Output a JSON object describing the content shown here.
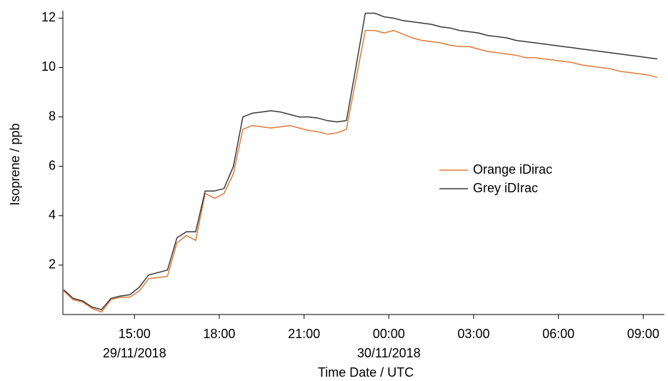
{
  "chart_data": {
    "type": "line",
    "xlabel": "Time Date / UTC",
    "ylabel": "Isoprene / ppb",
    "x": [
      "2018-11-29 12:30",
      "2018-11-29 12:50",
      "2018-11-29 13:10",
      "2018-11-29 13:30",
      "2018-11-29 13:50",
      "2018-11-29 14:10",
      "2018-11-29 14:30",
      "2018-11-29 14:50",
      "2018-11-29 15:10",
      "2018-11-29 15:30",
      "2018-11-29 15:50",
      "2018-11-29 16:10",
      "2018-11-29 16:30",
      "2018-11-29 16:50",
      "2018-11-29 17:10",
      "2018-11-29 17:30",
      "2018-11-29 17:50",
      "2018-11-29 18:10",
      "2018-11-29 18:30",
      "2018-11-29 18:50",
      "2018-11-29 19:10",
      "2018-11-29 19:30",
      "2018-11-29 19:50",
      "2018-11-29 20:10",
      "2018-11-29 20:30",
      "2018-11-29 20:50",
      "2018-11-29 21:10",
      "2018-11-29 21:30",
      "2018-11-29 21:50",
      "2018-11-29 22:10",
      "2018-11-29 22:30",
      "2018-11-29 22:50",
      "2018-11-29 23:10",
      "2018-11-29 23:30",
      "2018-11-29 23:50",
      "2018-11-30 00:10",
      "2018-11-30 00:30",
      "2018-11-30 00:50",
      "2018-11-30 01:10",
      "2018-11-30 01:30",
      "2018-11-30 01:50",
      "2018-11-30 02:10",
      "2018-11-30 02:30",
      "2018-11-30 02:50",
      "2018-11-30 03:10",
      "2018-11-30 03:30",
      "2018-11-30 03:50",
      "2018-11-30 04:10",
      "2018-11-30 04:30",
      "2018-11-30 04:50",
      "2018-11-30 05:10",
      "2018-11-30 05:30",
      "2018-11-30 05:50",
      "2018-11-30 06:10",
      "2018-11-30 06:30",
      "2018-11-30 06:50",
      "2018-11-30 07:10",
      "2018-11-30 07:30",
      "2018-11-30 07:50",
      "2018-11-30 08:10",
      "2018-11-30 08:30",
      "2018-11-30 08:50",
      "2018-11-30 09:10",
      "2018-11-30 09:30"
    ],
    "series": [
      {
        "name": "Orange iDirac",
        "color": "#e07b39",
        "values": [
          0.95,
          0.6,
          0.5,
          0.25,
          0.1,
          0.6,
          0.7,
          0.7,
          0.95,
          1.45,
          1.5,
          1.55,
          2.9,
          3.2,
          3.0,
          4.9,
          4.7,
          4.9,
          5.7,
          7.5,
          7.65,
          7.6,
          7.55,
          7.6,
          7.65,
          7.55,
          7.45,
          7.4,
          7.3,
          7.35,
          7.5,
          9.5,
          11.5,
          11.5,
          11.4,
          11.5,
          11.35,
          11.2,
          11.1,
          11.05,
          11.0,
          10.9,
          10.85,
          10.85,
          10.75,
          10.65,
          10.6,
          10.55,
          10.5,
          10.4,
          10.4,
          10.35,
          10.3,
          10.25,
          10.2,
          10.1,
          10.05,
          10.0,
          9.95,
          9.85,
          9.8,
          9.75,
          9.7,
          9.6
        ]
      },
      {
        "name": "Grey iDIrac",
        "color": "#3a3a3a",
        "values": [
          1.0,
          0.65,
          0.55,
          0.3,
          0.2,
          0.65,
          0.75,
          0.8,
          1.1,
          1.6,
          1.7,
          1.8,
          3.1,
          3.35,
          3.35,
          5.0,
          5.0,
          5.1,
          6.0,
          8.0,
          8.15,
          8.2,
          8.25,
          8.2,
          8.1,
          8.0,
          8.0,
          7.95,
          7.85,
          7.8,
          7.85,
          10.0,
          12.2,
          12.2,
          12.05,
          12.0,
          11.9,
          11.85,
          11.8,
          11.75,
          11.65,
          11.6,
          11.5,
          11.45,
          11.4,
          11.3,
          11.25,
          11.2,
          11.1,
          11.05,
          11.0,
          10.95,
          10.9,
          10.85,
          10.8,
          10.75,
          10.7,
          10.65,
          10.6,
          10.55,
          10.5,
          10.45,
          10.4,
          10.35
        ]
      }
    ],
    "xlim": [
      "2018-11-29 12:28",
      "2018-11-30 09:45"
    ],
    "xticks": [
      {
        "value": "2018-11-29 15:00",
        "label": "15:00"
      },
      {
        "value": "2018-11-29 18:00",
        "label": "18:00"
      },
      {
        "value": "2018-11-29 21:00",
        "label": "21:00"
      },
      {
        "value": "2018-11-30 00:00",
        "label": "00:00"
      },
      {
        "value": "2018-11-30 03:00",
        "label": "03:00"
      },
      {
        "value": "2018-11-30 06:00",
        "label": "06:00"
      },
      {
        "value": "2018-11-30 09:00",
        "label": "09:00"
      }
    ],
    "xtick_dates": [
      {
        "value": "2018-11-29 15:00",
        "label": "29/11/2018"
      },
      {
        "value": "2018-11-30 00:00",
        "label": "30/11/2018"
      }
    ],
    "ylim": [
      0,
      12.3
    ],
    "yticks": [
      2,
      4,
      6,
      8,
      10,
      12
    ],
    "grid": false,
    "legend": "right"
  }
}
